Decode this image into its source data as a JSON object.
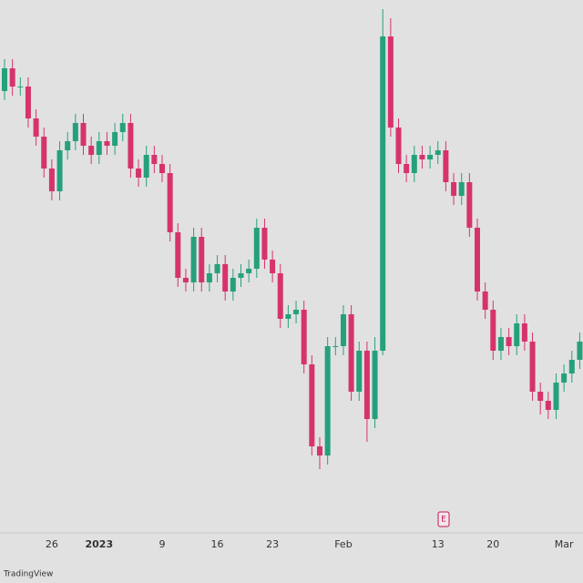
{
  "chart_data": {
    "type": "candlestick",
    "categories": [
      null,
      null,
      null,
      null,
      null,
      null,
      "26",
      null,
      null,
      null,
      null,
      null,
      "2023",
      null,
      null,
      null,
      null,
      null,
      null,
      null,
      "9",
      null,
      null,
      null,
      null,
      null,
      null,
      "16",
      null,
      null,
      null,
      null,
      null,
      null,
      "23",
      null,
      null,
      null,
      null,
      null,
      null,
      null,
      null,
      "Feb",
      null,
      null,
      null,
      null,
      null,
      null,
      null,
      null,
      null,
      null,
      null,
      "13",
      null,
      null,
      null,
      null,
      null,
      null,
      "20",
      null,
      null,
      null,
      null,
      null,
      null,
      null,
      null,
      "Mar",
      null,
      null
    ],
    "open": [
      480,
      505,
      485,
      485,
      450,
      430,
      395,
      370,
      415,
      425,
      445,
      420,
      410,
      425,
      420,
      435,
      445,
      395,
      385,
      410,
      400,
      390,
      325,
      275,
      270,
      320,
      270,
      280,
      290,
      260,
      275,
      280,
      285,
      330,
      295,
      280,
      230,
      235,
      240,
      180,
      90,
      80,
      200,
      200,
      235,
      150,
      195,
      120,
      195,
      540,
      440,
      400,
      390,
      410,
      405,
      410,
      415,
      380,
      365,
      380,
      330,
      260,
      240,
      195,
      210,
      200,
      225,
      205,
      150,
      140,
      130,
      160,
      170,
      185
    ],
    "high": [
      515,
      515,
      495,
      495,
      460,
      440,
      405,
      425,
      435,
      455,
      455,
      430,
      435,
      435,
      445,
      455,
      455,
      405,
      420,
      420,
      410,
      400,
      335,
      285,
      330,
      330,
      290,
      300,
      300,
      285,
      290,
      295,
      340,
      340,
      305,
      290,
      245,
      250,
      250,
      190,
      100,
      210,
      210,
      245,
      245,
      205,
      205,
      210,
      570,
      560,
      450,
      410,
      420,
      420,
      420,
      425,
      425,
      390,
      390,
      390,
      340,
      270,
      250,
      220,
      220,
      235,
      235,
      215,
      160,
      150,
      170,
      180,
      195,
      215
    ],
    "low": [
      470,
      475,
      475,
      440,
      420,
      385,
      360,
      360,
      405,
      415,
      410,
      400,
      400,
      410,
      410,
      425,
      385,
      375,
      375,
      390,
      380,
      315,
      265,
      260,
      260,
      260,
      260,
      270,
      250,
      250,
      265,
      270,
      275,
      285,
      270,
      220,
      220,
      225,
      170,
      80,
      65,
      70,
      190,
      190,
      140,
      140,
      95,
      110,
      190,
      430,
      390,
      380,
      380,
      395,
      395,
      400,
      370,
      355,
      355,
      320,
      250,
      230,
      185,
      185,
      190,
      190,
      195,
      140,
      125,
      120,
      120,
      150,
      160,
      175
    ],
    "close": [
      505,
      485,
      485,
      450,
      430,
      395,
      370,
      415,
      425,
      445,
      420,
      410,
      425,
      420,
      435,
      445,
      395,
      385,
      410,
      400,
      390,
      325,
      275,
      270,
      320,
      270,
      280,
      290,
      260,
      275,
      280,
      285,
      330,
      295,
      280,
      230,
      235,
      240,
      180,
      90,
      80,
      200,
      200,
      235,
      150,
      195,
      120,
      195,
      540,
      440,
      400,
      390,
      410,
      405,
      410,
      415,
      380,
      365,
      380,
      330,
      260,
      240,
      195,
      210,
      200,
      225,
      205,
      150,
      140,
      130,
      160,
      170,
      185,
      205
    ],
    "up_color": "#26a07c",
    "down_color": "#d6336c",
    "ylim": [
      0,
      580
    ],
    "annotation": "E",
    "footer": "TradingView"
  }
}
